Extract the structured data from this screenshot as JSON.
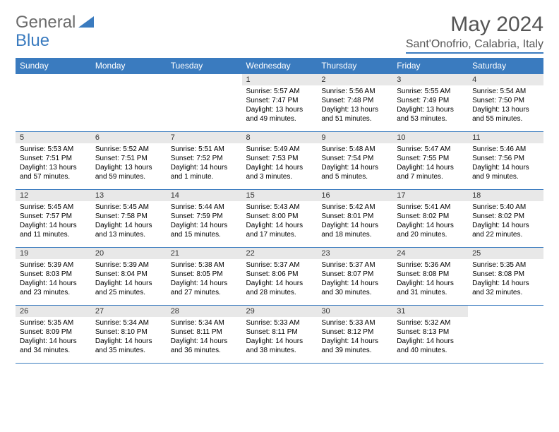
{
  "logo": {
    "text1": "General",
    "text2": "Blue"
  },
  "title": "May 2024",
  "location": "Sant'Onofrio, Calabria, Italy",
  "dayHeaders": [
    "Sunday",
    "Monday",
    "Tuesday",
    "Wednesday",
    "Thursday",
    "Friday",
    "Saturday"
  ],
  "colors": {
    "headerBg": "#3a7bbf",
    "headerText": "#ffffff",
    "dayNumBg": "#e8e8e8",
    "borderColor": "#3a7bbf"
  },
  "weeks": [
    [
      null,
      null,
      null,
      {
        "n": "1",
        "sr": "5:57 AM",
        "ss": "7:47 PM",
        "dl": "13 hours and 49 minutes."
      },
      {
        "n": "2",
        "sr": "5:56 AM",
        "ss": "7:48 PM",
        "dl": "13 hours and 51 minutes."
      },
      {
        "n": "3",
        "sr": "5:55 AM",
        "ss": "7:49 PM",
        "dl": "13 hours and 53 minutes."
      },
      {
        "n": "4",
        "sr": "5:54 AM",
        "ss": "7:50 PM",
        "dl": "13 hours and 55 minutes."
      }
    ],
    [
      {
        "n": "5",
        "sr": "5:53 AM",
        "ss": "7:51 PM",
        "dl": "13 hours and 57 minutes."
      },
      {
        "n": "6",
        "sr": "5:52 AM",
        "ss": "7:51 PM",
        "dl": "13 hours and 59 minutes."
      },
      {
        "n": "7",
        "sr": "5:51 AM",
        "ss": "7:52 PM",
        "dl": "14 hours and 1 minute."
      },
      {
        "n": "8",
        "sr": "5:49 AM",
        "ss": "7:53 PM",
        "dl": "14 hours and 3 minutes."
      },
      {
        "n": "9",
        "sr": "5:48 AM",
        "ss": "7:54 PM",
        "dl": "14 hours and 5 minutes."
      },
      {
        "n": "10",
        "sr": "5:47 AM",
        "ss": "7:55 PM",
        "dl": "14 hours and 7 minutes."
      },
      {
        "n": "11",
        "sr": "5:46 AM",
        "ss": "7:56 PM",
        "dl": "14 hours and 9 minutes."
      }
    ],
    [
      {
        "n": "12",
        "sr": "5:45 AM",
        "ss": "7:57 PM",
        "dl": "14 hours and 11 minutes."
      },
      {
        "n": "13",
        "sr": "5:45 AM",
        "ss": "7:58 PM",
        "dl": "14 hours and 13 minutes."
      },
      {
        "n": "14",
        "sr": "5:44 AM",
        "ss": "7:59 PM",
        "dl": "14 hours and 15 minutes."
      },
      {
        "n": "15",
        "sr": "5:43 AM",
        "ss": "8:00 PM",
        "dl": "14 hours and 17 minutes."
      },
      {
        "n": "16",
        "sr": "5:42 AM",
        "ss": "8:01 PM",
        "dl": "14 hours and 18 minutes."
      },
      {
        "n": "17",
        "sr": "5:41 AM",
        "ss": "8:02 PM",
        "dl": "14 hours and 20 minutes."
      },
      {
        "n": "18",
        "sr": "5:40 AM",
        "ss": "8:02 PM",
        "dl": "14 hours and 22 minutes."
      }
    ],
    [
      {
        "n": "19",
        "sr": "5:39 AM",
        "ss": "8:03 PM",
        "dl": "14 hours and 23 minutes."
      },
      {
        "n": "20",
        "sr": "5:39 AM",
        "ss": "8:04 PM",
        "dl": "14 hours and 25 minutes."
      },
      {
        "n": "21",
        "sr": "5:38 AM",
        "ss": "8:05 PM",
        "dl": "14 hours and 27 minutes."
      },
      {
        "n": "22",
        "sr": "5:37 AM",
        "ss": "8:06 PM",
        "dl": "14 hours and 28 minutes."
      },
      {
        "n": "23",
        "sr": "5:37 AM",
        "ss": "8:07 PM",
        "dl": "14 hours and 30 minutes."
      },
      {
        "n": "24",
        "sr": "5:36 AM",
        "ss": "8:08 PM",
        "dl": "14 hours and 31 minutes."
      },
      {
        "n": "25",
        "sr": "5:35 AM",
        "ss": "8:08 PM",
        "dl": "14 hours and 32 minutes."
      }
    ],
    [
      {
        "n": "26",
        "sr": "5:35 AM",
        "ss": "8:09 PM",
        "dl": "14 hours and 34 minutes."
      },
      {
        "n": "27",
        "sr": "5:34 AM",
        "ss": "8:10 PM",
        "dl": "14 hours and 35 minutes."
      },
      {
        "n": "28",
        "sr": "5:34 AM",
        "ss": "8:11 PM",
        "dl": "14 hours and 36 minutes."
      },
      {
        "n": "29",
        "sr": "5:33 AM",
        "ss": "8:11 PM",
        "dl": "14 hours and 38 minutes."
      },
      {
        "n": "30",
        "sr": "5:33 AM",
        "ss": "8:12 PM",
        "dl": "14 hours and 39 minutes."
      },
      {
        "n": "31",
        "sr": "5:32 AM",
        "ss": "8:13 PM",
        "dl": "14 hours and 40 minutes."
      },
      null
    ]
  ],
  "labels": {
    "sunrise": "Sunrise:",
    "sunset": "Sunset:",
    "daylight": "Daylight:"
  }
}
